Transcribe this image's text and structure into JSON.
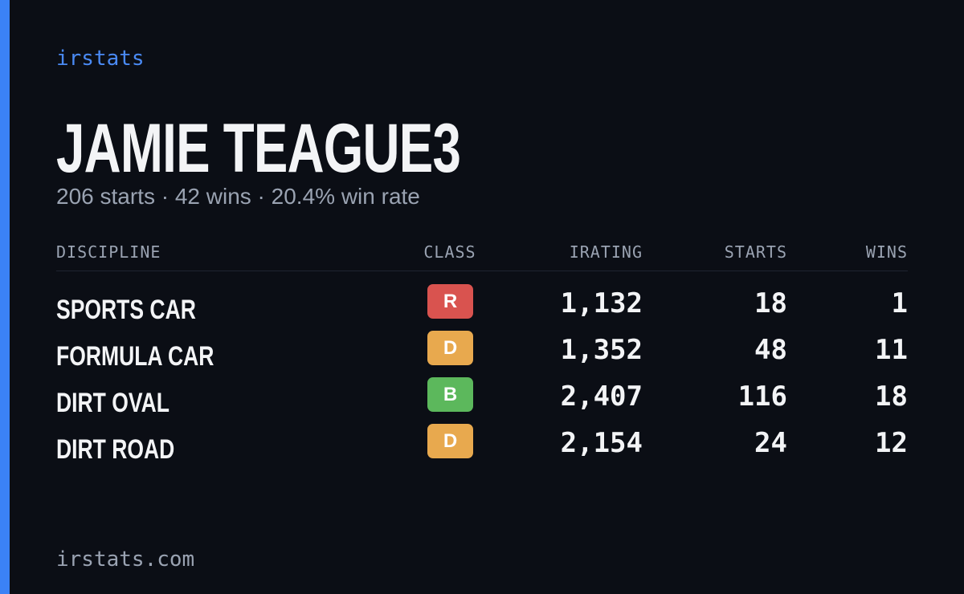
{
  "brand": "irstats",
  "name": "JAMIE TEAGUE3",
  "summary": "206 starts · 42 wins · 20.4% win rate",
  "table": {
    "headers": [
      "DISCIPLINE",
      "CLASS",
      "IRATING",
      "STARTS",
      "WINS"
    ],
    "rows": [
      {
        "discipline": "SPORTS CAR",
        "class": "R",
        "class_color": "#d9534f",
        "irating": "1,132",
        "starts": "18",
        "wins": "1"
      },
      {
        "discipline": "FORMULA CAR",
        "class": "D",
        "class_color": "#e8a94e",
        "irating": "1,352",
        "starts": "48",
        "wins": "11"
      },
      {
        "discipline": "DIRT OVAL",
        "class": "B",
        "class_color": "#5cb85c",
        "irating": "2,407",
        "starts": "116",
        "wins": "18"
      },
      {
        "discipline": "DIRT ROAD",
        "class": "D",
        "class_color": "#e8a94e",
        "irating": "2,154",
        "starts": "24",
        "wins": "12"
      }
    ]
  },
  "footer": "irstats.com"
}
